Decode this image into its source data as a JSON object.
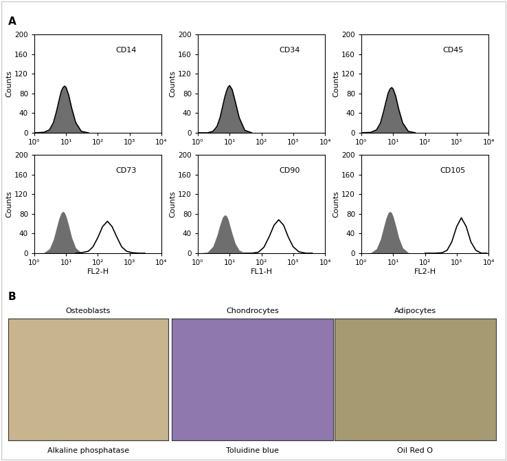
{
  "panel_labels": [
    "A",
    "B"
  ],
  "chart_data": [
    {
      "type": "line",
      "title": "CD14",
      "ylabel": "Counts",
      "log": "x",
      "grid": false,
      "xlim": [
        1,
        10000
      ],
      "xticks": [
        {
          "value": 1,
          "label": "10⁰"
        },
        {
          "value": 10,
          "label": "10¹"
        },
        {
          "value": 100,
          "label": "10²"
        },
        {
          "value": 1000,
          "label": "10³"
        },
        {
          "value": 10000,
          "label": "10⁴"
        }
      ],
      "ylim": [
        0,
        200
      ],
      "yticks": [
        0,
        40,
        80,
        120,
        160,
        200
      ],
      "series": [
        {
          "type": "area",
          "color": "#6e6e6e",
          "x": [
            1,
            2,
            3,
            4,
            5,
            6,
            7,
            8,
            9,
            10,
            12,
            15,
            20,
            30,
            50
          ],
          "values": [
            0,
            1,
            6,
            21,
            44,
            66,
            84,
            92,
            95,
            92,
            77,
            50,
            21,
            3,
            0
          ]
        },
        {
          "type": "line",
          "color": "#000000",
          "x": [
            1,
            2,
            3,
            4,
            5,
            6,
            7,
            8,
            9,
            10,
            12,
            15,
            20,
            30,
            50
          ],
          "values": [
            0,
            1,
            6,
            21,
            44,
            66,
            84,
            92,
            95,
            92,
            77,
            50,
            21,
            3,
            0
          ]
        }
      ]
    },
    {
      "type": "line",
      "title": "CD34",
      "ylabel": "Counts",
      "log": "x",
      "grid": false,
      "xlim": [
        1,
        10000
      ],
      "xticks": [
        {
          "value": 1,
          "label": "10⁰"
        },
        {
          "value": 10,
          "label": "10¹"
        },
        {
          "value": 100,
          "label": "10²"
        },
        {
          "value": 1000,
          "label": "10³"
        },
        {
          "value": 10000,
          "label": "10⁴"
        }
      ],
      "ylim": [
        0,
        200
      ],
      "yticks": [
        0,
        40,
        80,
        120,
        160,
        200
      ],
      "series": [
        {
          "type": "area",
          "color": "#6e6e6e",
          "x": [
            1,
            2,
            3,
            4,
            5,
            6,
            7,
            8,
            9,
            10,
            12,
            15,
            20,
            30,
            50
          ],
          "values": [
            0,
            0,
            3,
            13,
            31,
            53,
            72,
            85,
            93,
            96,
            88,
            64,
            31,
            5,
            0
          ]
        },
        {
          "type": "line",
          "color": "#000000",
          "x": [
            1,
            2,
            3,
            4,
            5,
            6,
            7,
            8,
            9,
            10,
            12,
            15,
            20,
            30,
            50
          ],
          "values": [
            0,
            0,
            3,
            13,
            31,
            53,
            72,
            85,
            93,
            96,
            88,
            64,
            31,
            5,
            0
          ]
        }
      ]
    },
    {
      "type": "line",
      "title": "CD45",
      "ylabel": "Counts",
      "log": "x",
      "grid": false,
      "xlim": [
        1,
        10000
      ],
      "xticks": [
        {
          "value": 1,
          "label": "10⁰"
        },
        {
          "value": 10,
          "label": "10¹"
        },
        {
          "value": 100,
          "label": "10²"
        },
        {
          "value": 1000,
          "label": "10³"
        },
        {
          "value": 10000,
          "label": "10⁴"
        }
      ],
      "ylim": [
        0,
        200
      ],
      "yticks": [
        0,
        40,
        80,
        120,
        160,
        200
      ],
      "series": [
        {
          "type": "area",
          "color": "#6e6e6e",
          "x": [
            1,
            2,
            3,
            4,
            5,
            6,
            7,
            8,
            9,
            10,
            12,
            15,
            20,
            30,
            50
          ],
          "values": [
            0,
            1,
            6,
            20,
            43,
            64,
            81,
            89,
            92,
            89,
            75,
            48,
            20,
            3,
            0
          ]
        },
        {
          "type": "line",
          "color": "#000000",
          "x": [
            1,
            2,
            3,
            4,
            5,
            6,
            7,
            8,
            9,
            10,
            12,
            15,
            20,
            30,
            50
          ],
          "values": [
            0,
            1,
            6,
            20,
            43,
            64,
            81,
            89,
            92,
            89,
            75,
            48,
            20,
            3,
            0
          ]
        }
      ]
    },
    {
      "type": "line",
      "title": "CD73",
      "xlabel": "FL2-H",
      "ylabel": "Counts",
      "log": "x",
      "grid": false,
      "xlim": [
        1,
        10000
      ],
      "xticks": [
        {
          "value": 1,
          "label": "10⁰"
        },
        {
          "value": 10,
          "label": "10¹"
        },
        {
          "value": 100,
          "label": "10²"
        },
        {
          "value": 1000,
          "label": "10³"
        },
        {
          "value": 10000,
          "label": "10⁴"
        }
      ],
      "ylim": [
        0,
        200
      ],
      "yticks": [
        0,
        40,
        80,
        120,
        160,
        200
      ],
      "series": [
        {
          "type": "area",
          "color": "#6e6e6e",
          "x": [
            1,
            2,
            3,
            4,
            5,
            6,
            7,
            8,
            9,
            10,
            12,
            15,
            20,
            30,
            50
          ],
          "values": [
            0,
            1,
            9,
            28,
            52,
            71,
            82,
            85,
            82,
            75,
            57,
            32,
            11,
            1,
            0
          ]
        },
        {
          "type": "line",
          "color": "#000000",
          "x": [
            20,
            30,
            50,
            70,
            100,
            140,
            200,
            280,
            400,
            560,
            800,
            1200,
            2000,
            3000
          ],
          "values": [
            0,
            1,
            4,
            13,
            32,
            54,
            65,
            54,
            32,
            13,
            4,
            1,
            0,
            0
          ]
        }
      ]
    },
    {
      "type": "line",
      "title": "CD90",
      "xlabel": "FL1-H",
      "ylabel": "Counts",
      "log": "x",
      "grid": false,
      "xlim": [
        1,
        10000
      ],
      "xticks": [
        {
          "value": 1,
          "label": "10⁰"
        },
        {
          "value": 10,
          "label": "10¹"
        },
        {
          "value": 100,
          "label": "10²"
        },
        {
          "value": 1000,
          "label": "10³"
        },
        {
          "value": 10000,
          "label": "10⁴"
        }
      ],
      "ylim": [
        0,
        200
      ],
      "yticks": [
        0,
        40,
        80,
        120,
        160,
        200
      ],
      "series": [
        {
          "type": "area",
          "color": "#6e6e6e",
          "x": [
            1,
            2,
            3,
            4,
            5,
            6,
            7,
            8,
            9,
            10,
            12,
            15,
            20,
            30,
            50
          ],
          "values": [
            0,
            2,
            14,
            36,
            58,
            73,
            78,
            76,
            69,
            58,
            40,
            20,
            6,
            1,
            0
          ]
        },
        {
          "type": "line",
          "color": "#000000",
          "x": [
            30,
            50,
            80,
            120,
            180,
            250,
            350,
            500,
            700,
            1000,
            1500,
            2500,
            4000
          ],
          "values": [
            0,
            0,
            2,
            12,
            35,
            57,
            68,
            57,
            33,
            13,
            3,
            0,
            0
          ]
        }
      ]
    },
    {
      "type": "line",
      "title": "CD105",
      "xlabel": "FL2-H",
      "ylabel": "Counts",
      "log": "x",
      "grid": false,
      "xlim": [
        1,
        10000
      ],
      "xticks": [
        {
          "value": 1,
          "label": "10⁰"
        },
        {
          "value": 10,
          "label": "10¹"
        },
        {
          "value": 100,
          "label": "10²"
        },
        {
          "value": 1000,
          "label": "10³"
        },
        {
          "value": 10000,
          "label": "10⁴"
        }
      ],
      "ylim": [
        0,
        200
      ],
      "yticks": [
        0,
        40,
        80,
        120,
        160,
        200
      ],
      "series": [
        {
          "type": "area",
          "color": "#6e6e6e",
          "x": [
            1,
            2,
            3,
            4,
            5,
            6,
            7,
            8,
            9,
            10,
            12,
            15,
            20,
            30,
            50
          ],
          "values": [
            0,
            1,
            9,
            28,
            52,
            71,
            82,
            85,
            82,
            75,
            57,
            32,
            11,
            1,
            0
          ]
        },
        {
          "type": "line",
          "color": "#000000",
          "x": [
            100,
            200,
            350,
            500,
            700,
            1000,
            1400,
            2000,
            2800,
            4000,
            6000,
            9000
          ],
          "values": [
            0,
            0,
            1,
            6,
            23,
            54,
            72,
            54,
            23,
            6,
            0,
            0
          ]
        }
      ]
    }
  ],
  "images": [
    {
      "title": "Osteoblasts",
      "stain": "Alkaline phosphatase",
      "color": "#c8b48e"
    },
    {
      "title": "Chondrocytes",
      "stain": "Toluidine blue",
      "color": "#8f78ad"
    },
    {
      "title": "Adipocytes",
      "stain": "Oil Red O",
      "color": "#a69a72"
    }
  ]
}
